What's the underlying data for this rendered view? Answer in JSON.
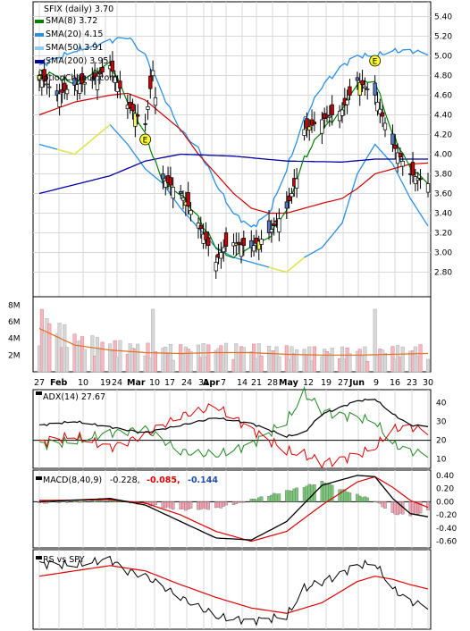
{
  "chart_data": [
    {
      "panel": "price",
      "type": "candlestick",
      "ticker_label": "SFIX (daily) 3.70",
      "watermark": "OptionChance.com",
      "legend": [
        {
          "label": "SMA(8) 3.72",
          "color": "#008000"
        },
        {
          "label": "SMA(20) 4.15",
          "color": "#2a8fe6"
        },
        {
          "label": "SMA(50) 3.91",
          "color": "#8ecbf3"
        },
        {
          "label": "SMA(200) 3.95",
          "color": "#0000a0"
        }
      ],
      "y_ticks": [
        "5.40",
        "5.20",
        "5.00",
        "4.80",
        "4.60",
        "4.40",
        "4.20",
        "4.00",
        "3.80",
        "3.60",
        "3.40",
        "3.20",
        "3.00",
        "2.80"
      ],
      "ylim": [
        2.55,
        5.55
      ],
      "markers": [
        {
          "label": "E",
          "x": "Mar 10"
        },
        {
          "label": "E",
          "x": "Jun 9"
        }
      ],
      "sma8_key": [
        [
          "Jan 27",
          4.85
        ],
        [
          "Feb 10",
          4.72
        ],
        [
          "Feb 24",
          4.92
        ],
        [
          "Mar 3",
          4.55
        ],
        [
          "Mar 10",
          4.2
        ],
        [
          "Mar 17",
          3.7
        ],
        [
          "Mar 24",
          3.6
        ],
        [
          "Mar 31",
          3.35
        ],
        [
          "Apr 7",
          3.05
        ],
        [
          "Apr 14",
          2.95
        ],
        [
          "Apr 21",
          3.05
        ],
        [
          "Apr 28",
          3.15
        ],
        [
          "May 5",
          3.45
        ],
        [
          "May 12",
          3.95
        ],
        [
          "May 19",
          4.25
        ],
        [
          "May 27",
          4.45
        ],
        [
          "Jun 2",
          4.7
        ],
        [
          "Jun 9",
          4.75
        ],
        [
          "Jun 16",
          4.2
        ],
        [
          "Jun 23",
          3.85
        ],
        [
          "Jun 30",
          3.72
        ]
      ],
      "sma20_upper_key": [
        [
          "Jan 27",
          4.9
        ],
        [
          "Feb 10",
          5.05
        ],
        [
          "Feb 24",
          5.15
        ],
        [
          "Mar 3",
          5.2
        ],
        [
          "Mar 10",
          5.0
        ],
        [
          "Mar 17",
          4.6
        ],
        [
          "Mar 24",
          4.25
        ],
        [
          "Mar 31",
          4.05
        ],
        [
          "Apr 7",
          3.7
        ],
        [
          "Apr 14",
          3.4
        ],
        [
          "Apr 21",
          3.25
        ],
        [
          "Apr 28",
          3.4
        ],
        [
          "May 5",
          3.85
        ],
        [
          "May 12",
          4.35
        ],
        [
          "May 19",
          4.7
        ],
        [
          "May 27",
          4.9
        ],
        [
          "Jun 2",
          5.0
        ],
        [
          "Jun 9",
          5.0
        ],
        [
          "Jun 16",
          5.05
        ],
        [
          "Jun 23",
          5.05
        ],
        [
          "Jun 30",
          5.03
        ]
      ],
      "sma20_key": [
        [
          "Jan 27",
          4.5
        ],
        [
          "Feb 10",
          4.55
        ],
        [
          "Feb 24",
          4.7
        ],
        [
          "Mar 3",
          4.65
        ],
        [
          "Mar 10",
          4.45
        ],
        [
          "Mar 17",
          4.2
        ],
        [
          "Mar 24",
          3.95
        ],
        [
          "Mar 31",
          3.7
        ],
        [
          "Apr 7",
          3.45
        ],
        [
          "Apr 14",
          3.25
        ],
        [
          "Apr 21",
          3.1
        ],
        [
          "Apr 28",
          3.1
        ],
        [
          "May 5",
          3.3
        ],
        [
          "May 12",
          3.6
        ],
        [
          "May 19",
          3.9
        ],
        [
          "May 27",
          4.2
        ],
        [
          "Jun 2",
          4.45
        ],
        [
          "Jun 9",
          4.6
        ],
        [
          "Jun 16",
          4.45
        ],
        [
          "Jun 23",
          4.3
        ],
        [
          "Jun 30",
          4.15
        ]
      ],
      "sma20_lower_key": [
        [
          "Jan 27",
          4.1
        ],
        [
          "Feb 10",
          4.0
        ],
        [
          "Feb 24",
          4.3
        ],
        [
          "Mar 3",
          4.1
        ],
        [
          "Mar 10",
          3.85
        ],
        [
          "Mar 17",
          3.7
        ],
        [
          "Mar 24",
          3.45
        ],
        [
          "Mar 31",
          3.25
        ],
        [
          "Apr 7",
          3.05
        ],
        [
          "Apr 14",
          2.95
        ],
        [
          "Apr 21",
          2.9
        ],
        [
          "Apr 28",
          2.85
        ],
        [
          "May 5",
          2.8
        ],
        [
          "May 12",
          2.95
        ],
        [
          "May 19",
          3.05
        ],
        [
          "May 27",
          3.3
        ],
        [
          "Jun 2",
          3.8
        ],
        [
          "Jun 9",
          4.1
        ],
        [
          "Jun 16",
          3.9
        ],
        [
          "Jun 23",
          3.55
        ],
        [
          "Jun 30",
          3.27
        ]
      ],
      "sma50_key": [
        [
          "Jan 27",
          4.4
        ],
        [
          "Feb 10",
          4.53
        ],
        [
          "Feb 24",
          4.6
        ],
        [
          "Mar 3",
          4.62
        ],
        [
          "Mar 10",
          4.55
        ],
        [
          "Mar 17",
          4.4
        ],
        [
          "Mar 24",
          4.25
        ],
        [
          "Mar 31",
          4.0
        ],
        [
          "Apr 7",
          3.8
        ],
        [
          "Apr 14",
          3.6
        ],
        [
          "Apr 21",
          3.45
        ],
        [
          "Apr 28",
          3.4
        ],
        [
          "May 5",
          3.4
        ],
        [
          "May 12",
          3.45
        ],
        [
          "May 19",
          3.5
        ],
        [
          "May 27",
          3.55
        ],
        [
          "Jun 2",
          3.65
        ],
        [
          "Jun 9",
          3.8
        ],
        [
          "Jun 16",
          3.85
        ],
        [
          "Jun 23",
          3.9
        ],
        [
          "Jun 30",
          3.91
        ]
      ],
      "sma200_key": [
        [
          "Jan 27",
          3.6
        ],
        [
          "Feb 24",
          3.78
        ],
        [
          "Mar 10",
          3.93
        ],
        [
          "Mar 24",
          4.0
        ],
        [
          "Apr 14",
          3.98
        ],
        [
          "May 5",
          3.93
        ],
        [
          "May 27",
          3.92
        ],
        [
          "Jun 9",
          3.95
        ],
        [
          "Jun 30",
          3.95
        ]
      ],
      "candle_key": [
        [
          "Jan 27",
          4.8
        ],
        [
          "Feb 3",
          4.6
        ],
        [
          "Feb 10",
          4.7
        ],
        [
          "Feb 17",
          4.75
        ],
        [
          "Feb 24",
          4.9
        ],
        [
          "Mar 3",
          4.5
        ],
        [
          "Mar 10",
          4.3
        ],
        [
          "Mar 13",
          4.85
        ],
        [
          "Mar 17",
          3.75
        ],
        [
          "Mar 24",
          3.6
        ],
        [
          "Mar 31",
          3.3
        ],
        [
          "Apr 7",
          2.9
        ],
        [
          "Apr 10",
          3.05
        ],
        [
          "Apr 14",
          3.1
        ],
        [
          "Apr 21",
          3.05
        ],
        [
          "Apr 28",
          3.2
        ],
        [
          "May 5",
          3.45
        ],
        [
          "May 9",
          3.75
        ],
        [
          "May 12",
          4.25
        ],
        [
          "May 19",
          4.35
        ],
        [
          "May 27",
          4.45
        ],
        [
          "Jun 2",
          4.75
        ],
        [
          "Jun 9",
          4.6
        ],
        [
          "Jun 16",
          4.1
        ],
        [
          "Jun 23",
          3.8
        ],
        [
          "Jun 30",
          3.7
        ]
      ]
    },
    {
      "panel": "volume",
      "type": "bar",
      "y_ticks": [
        "8M",
        "6M",
        "4M",
        "2M"
      ],
      "ylim": [
        0,
        9
      ],
      "avg_key": [
        [
          "Jan 27",
          5.2
        ],
        [
          "Feb 3",
          4.2
        ],
        [
          "Feb 10",
          3.2
        ],
        [
          "Feb 24",
          2.6
        ],
        [
          "Mar 10",
          2.3
        ],
        [
          "Mar 24",
          2.2
        ],
        [
          "Apr 7",
          2.3
        ],
        [
          "Apr 21",
          2.3
        ],
        [
          "May 5",
          2.1
        ],
        [
          "May 19",
          2.0
        ],
        [
          "Jun 2",
          2.0
        ],
        [
          "Jun 16",
          2.1
        ],
        [
          "Jun 30",
          2.2
        ]
      ]
    },
    {
      "panel": "x_axis",
      "labels": [
        "27",
        "Feb",
        "10",
        "19",
        "24",
        "Mar",
        "10",
        "17",
        "24",
        "31",
        "Apr",
        "7",
        "14",
        "21",
        "28",
        "May",
        "12",
        "19",
        "27",
        "Jun",
        "9",
        "16",
        "23",
        "30"
      ]
    },
    {
      "panel": "adx",
      "type": "line",
      "label": "ADX(14) 27.67",
      "y_ticks": [
        "40",
        "30",
        "20",
        "10"
      ],
      "ylim": [
        5,
        47
      ],
      "adx_key": [
        [
          "Jan 27",
          28
        ],
        [
          "Feb 10",
          30
        ],
        [
          "Feb 24",
          27
        ],
        [
          "Mar 10",
          24
        ],
        [
          "Mar 24",
          28
        ],
        [
          "Apr 7",
          32
        ],
        [
          "Apr 21",
          29
        ],
        [
          "May 5",
          22
        ],
        [
          "May 12",
          24
        ],
        [
          "May 19",
          34
        ],
        [
          "Jun 2",
          41
        ],
        [
          "Jun 9",
          42
        ],
        [
          "Jun 16",
          34
        ],
        [
          "Jun 23",
          28
        ],
        [
          "Jun 30",
          27.67
        ]
      ],
      "plus_di_key": [
        [
          "Jan 27",
          18
        ],
        [
          "Feb 10",
          19
        ],
        [
          "Feb 24",
          24
        ],
        [
          "Mar 10",
          26
        ],
        [
          "Mar 24",
          14
        ],
        [
          "Apr 7",
          12
        ],
        [
          "Apr 21",
          18
        ],
        [
          "May 5",
          30
        ],
        [
          "May 12",
          45
        ],
        [
          "May 19",
          36
        ],
        [
          "Jun 2",
          32
        ],
        [
          "Jun 9",
          30
        ],
        [
          "Jun 16",
          18
        ],
        [
          "Jun 23",
          14
        ],
        [
          "Jun 30",
          13
        ]
      ],
      "minus_di_key": [
        [
          "Jan 27",
          19
        ],
        [
          "Feb 10",
          22
        ],
        [
          "Feb 24",
          16
        ],
        [
          "Mar 10",
          23
        ],
        [
          "Mar 24",
          33
        ],
        [
          "Apr 7",
          38
        ],
        [
          "Apr 21",
          26
        ],
        [
          "May 5",
          14
        ],
        [
          "May 12",
          12
        ],
        [
          "May 19",
          8
        ],
        [
          "Jun 2",
          12
        ],
        [
          "Jun 9",
          16
        ],
        [
          "Jun 16",
          26
        ],
        [
          "Jun 23",
          27
        ],
        [
          "Jun 30",
          25
        ]
      ]
    },
    {
      "panel": "macd",
      "type": "line",
      "label": "MACD(8,40,9)",
      "value_main": "-0.228,",
      "value_signal": "-0.085,",
      "value_hist": "-0.144",
      "y_ticks": [
        "0.40",
        "0.20",
        "0.00",
        "-0.20",
        "-0.40",
        "-0.60"
      ],
      "ylim": [
        -0.7,
        0.48
      ],
      "macd_key": [
        [
          "Jan 27",
          0.0
        ],
        [
          "Feb 24",
          0.05
        ],
        [
          "Mar 10",
          -0.05
        ],
        [
          "Mar 24",
          -0.3
        ],
        [
          "Apr 7",
          -0.55
        ],
        [
          "Apr 21",
          -0.58
        ],
        [
          "May 5",
          -0.3
        ],
        [
          "May 19",
          0.25
        ],
        [
          "Jun 2",
          0.4
        ],
        [
          "Jun 9",
          0.38
        ],
        [
          "Jun 16",
          0.05
        ],
        [
          "Jun 23",
          -0.18
        ],
        [
          "Jun 30",
          -0.228
        ]
      ],
      "signal_key": [
        [
          "Jan 27",
          0.02
        ],
        [
          "Feb 24",
          0.03
        ],
        [
          "Mar 10",
          -0.02
        ],
        [
          "Mar 24",
          -0.2
        ],
        [
          "Apr 7",
          -0.45
        ],
        [
          "Apr 21",
          -0.6
        ],
        [
          "May 5",
          -0.45
        ],
        [
          "May 19",
          -0.05
        ],
        [
          "Jun 2",
          0.3
        ],
        [
          "Jun 9",
          0.38
        ],
        [
          "Jun 16",
          0.22
        ],
        [
          "Jun 23",
          0.02
        ],
        [
          "Jun 30",
          -0.085
        ]
      ],
      "hist_key": [
        [
          "Jan 27",
          -0.02
        ],
        [
          "Feb 24",
          0.03
        ],
        [
          "Mar 10",
          -0.04
        ],
        [
          "Mar 24",
          -0.12
        ],
        [
          "Apr 7",
          -0.1
        ],
        [
          "Apr 21",
          0.03
        ],
        [
          "May 5",
          0.16
        ],
        [
          "May 19",
          0.3
        ],
        [
          "Jun 2",
          0.1
        ],
        [
          "Jun 9",
          0.02
        ],
        [
          "Jun 16",
          -0.18
        ],
        [
          "Jun 23",
          -0.2
        ],
        [
          "Jun 30",
          -0.144
        ]
      ]
    },
    {
      "panel": "rs",
      "type": "line",
      "label": "RS vs SPY",
      "rs_key": [
        [
          "Jan 27",
          0.62
        ],
        [
          "Feb 10",
          0.6
        ],
        [
          "Feb 24",
          0.66
        ],
        [
          "Mar 3",
          0.55
        ],
        [
          "Mar 10",
          0.5
        ],
        [
          "Mar 24",
          0.3
        ],
        [
          "Apr 7",
          0.12
        ],
        [
          "Apr 21",
          0.08
        ],
        [
          "May 5",
          0.12
        ],
        [
          "May 12",
          0.38
        ],
        [
          "May 19",
          0.45
        ],
        [
          "Jun 2",
          0.6
        ],
        [
          "Jun 9",
          0.62
        ],
        [
          "Jun 16",
          0.38
        ],
        [
          "Jun 23",
          0.26
        ],
        [
          "Jun 30",
          0.22
        ]
      ],
      "rs_ma_key": [
        [
          "Jan 27",
          0.5
        ],
        [
          "Feb 10",
          0.55
        ],
        [
          "Feb 24",
          0.6
        ],
        [
          "Mar 10",
          0.55
        ],
        [
          "Mar 24",
          0.42
        ],
        [
          "Apr 7",
          0.3
        ],
        [
          "Apr 21",
          0.2
        ],
        [
          "May 5",
          0.15
        ],
        [
          "May 19",
          0.25
        ],
        [
          "Jun 2",
          0.45
        ],
        [
          "Jun 9",
          0.5
        ],
        [
          "Jun 16",
          0.47
        ],
        [
          "Jun 23",
          0.42
        ],
        [
          "Jun 30",
          0.38
        ]
      ]
    }
  ]
}
